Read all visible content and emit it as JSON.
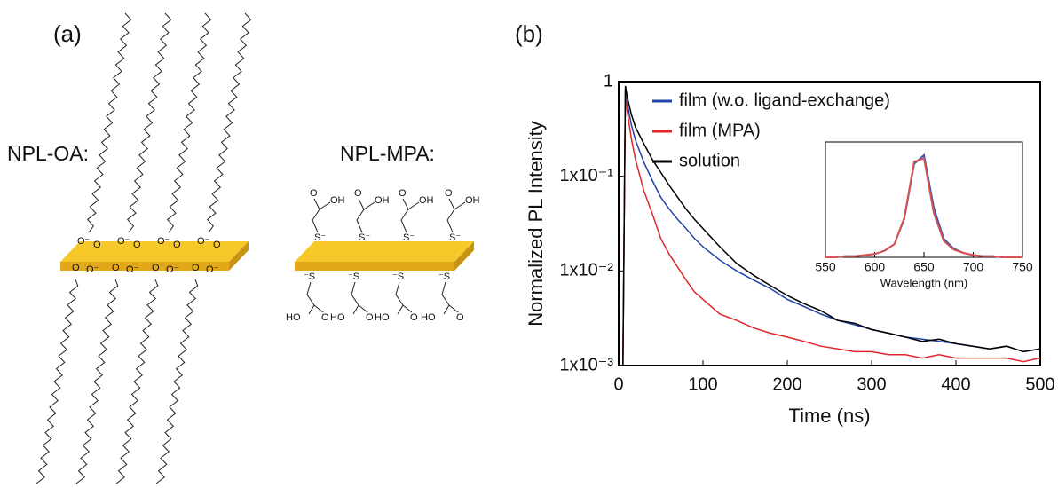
{
  "panel_a": {
    "label": "(a)",
    "oa": {
      "name": "NPL-OA:",
      "top": [
        [
          "O⁻",
          "O"
        ],
        [
          "O⁻",
          "O"
        ],
        [
          "O⁻",
          "O"
        ],
        [
          "O⁻",
          "O"
        ]
      ],
      "bottom": [
        [
          "O",
          "O⁻"
        ],
        [
          "O",
          "O⁻"
        ],
        [
          "O",
          "O⁻"
        ],
        [
          "O",
          "O⁻"
        ]
      ]
    },
    "mpa": {
      "name": "NPL-MPA:",
      "top": [
        [
          "O",
          "OH",
          "S⁻"
        ],
        [
          "O",
          "OH",
          "S⁻"
        ],
        [
          "O",
          "OH",
          "S⁻"
        ],
        [
          "O",
          "OH",
          "S⁻"
        ]
      ],
      "bottom": [
        [
          "⁻S",
          "HO",
          "O"
        ],
        [
          "⁻S",
          "HO",
          "O"
        ],
        [
          "⁻S",
          "HO",
          "O"
        ],
        [
          "⁻S",
          "HO",
          "O"
        ]
      ]
    }
  },
  "panel_b_label": "(b)",
  "chart_data": [
    {
      "type": "line",
      "xlabel": "Time (ns)",
      "ylabel": "Normalized PL Intensity",
      "x": [
        0,
        5,
        8,
        10,
        15,
        20,
        30,
        40,
        50,
        60,
        70,
        80,
        90,
        100,
        120,
        140,
        160,
        180,
        200,
        220,
        240,
        260,
        280,
        300,
        320,
        340,
        360,
        380,
        400,
        420,
        440,
        460,
        480,
        500
      ],
      "series": [
        {
          "name": "film (w.o. ligand-exchange)",
          "color": "#2343a8",
          "values": [
            0.001,
            0.001,
            0.85,
            0.6,
            0.35,
            0.24,
            0.14,
            0.09,
            0.06,
            0.045,
            0.035,
            0.028,
            0.022,
            0.018,
            0.013,
            0.01,
            0.008,
            0.0065,
            0.005,
            0.0042,
            0.0035,
            0.003,
            0.0027,
            0.0024,
            0.0022,
            0.002,
            0.0019,
            0.0018,
            0.0017,
            0.0016,
            0.0015,
            0.0016,
            0.0014,
            0.0015
          ]
        },
        {
          "name": "film (MPA)",
          "color": "#e0262a",
          "values": [
            0.001,
            0.001,
            0.8,
            0.5,
            0.25,
            0.15,
            0.07,
            0.04,
            0.022,
            0.015,
            0.011,
            0.008,
            0.006,
            0.005,
            0.0035,
            0.003,
            0.0025,
            0.0022,
            0.002,
            0.0018,
            0.0016,
            0.0015,
            0.0014,
            0.0014,
            0.0013,
            0.0013,
            0.0012,
            0.0013,
            0.0012,
            0.0012,
            0.0012,
            0.0012,
            0.0011,
            0.0012
          ]
        },
        {
          "name": "solution",
          "color": "#000000",
          "values": [
            0.001,
            0.001,
            0.9,
            0.7,
            0.45,
            0.33,
            0.22,
            0.15,
            0.11,
            0.08,
            0.06,
            0.045,
            0.035,
            0.028,
            0.018,
            0.012,
            0.009,
            0.007,
            0.0055,
            0.0045,
            0.0038,
            0.003,
            0.0028,
            0.0024,
            0.0022,
            0.002,
            0.0018,
            0.0019,
            0.0017,
            0.0016,
            0.0015,
            0.0016,
            0.0014,
            0.0015
          ]
        }
      ],
      "xlim": [
        0,
        500
      ],
      "xticks": [
        0,
        100,
        200,
        300,
        400,
        500
      ],
      "ylim": [
        0.001,
        1
      ],
      "log_y": true,
      "yticks": [
        {
          "value": 0.001,
          "label": "1x10⁻³"
        },
        {
          "value": 0.01,
          "label": "1x10⁻²"
        },
        {
          "value": 0.1,
          "label": "1x10⁻¹"
        },
        1
      ],
      "legend": "upper left"
    },
    {
      "type": "line",
      "xlabel": "Wavelength (nm)",
      "x": [
        550,
        560,
        570,
        580,
        590,
        600,
        610,
        620,
        630,
        640,
        650,
        660,
        670,
        680,
        690,
        700,
        710,
        720,
        730,
        740,
        750
      ],
      "series": [
        {
          "color": "#3a55b5",
          "values": [
            0,
            0,
            0.01,
            0.01,
            0.02,
            0.03,
            0.06,
            0.12,
            0.35,
            0.85,
            0.93,
            0.45,
            0.17,
            0.08,
            0.04,
            0.02,
            0.01,
            0.01,
            0,
            0,
            0
          ]
        },
        {
          "color": "#d9534f",
          "values": [
            0,
            0,
            0.01,
            0.01,
            0.02,
            0.03,
            0.06,
            0.12,
            0.36,
            0.87,
            0.9,
            0.4,
            0.15,
            0.07,
            0.04,
            0.02,
            0.01,
            0.01,
            0,
            0,
            0
          ]
        }
      ],
      "xlim": [
        550,
        750
      ],
      "xticks": [
        550,
        600,
        650,
        700,
        750
      ],
      "ylim": [
        0,
        1.05
      ]
    }
  ]
}
